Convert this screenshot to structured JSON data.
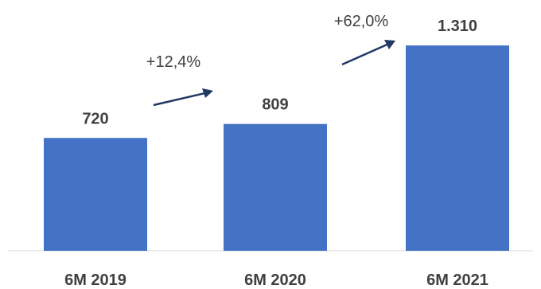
{
  "chart_data": {
    "type": "bar",
    "categories": [
      "6M 2019",
      "6M 2020",
      "6M 2021"
    ],
    "values": [
      720,
      809,
      1310
    ],
    "value_labels": [
      "720",
      "809",
      "1.310"
    ],
    "annotations": [
      {
        "from": "6M 2019",
        "to": "6M 2020",
        "label": "+12,4%"
      },
      {
        "from": "6M 2020",
        "to": "6M 2021",
        "label": "+62,0%"
      }
    ],
    "ylim": [
      0,
      1600
    ],
    "grid": false,
    "legend": "none",
    "title": "",
    "xlabel": "",
    "ylabel": ""
  },
  "colors": {
    "bar": "#4472C4",
    "text": "#404040",
    "arrow": "#1F3864",
    "axis": "#D9D9D9"
  }
}
